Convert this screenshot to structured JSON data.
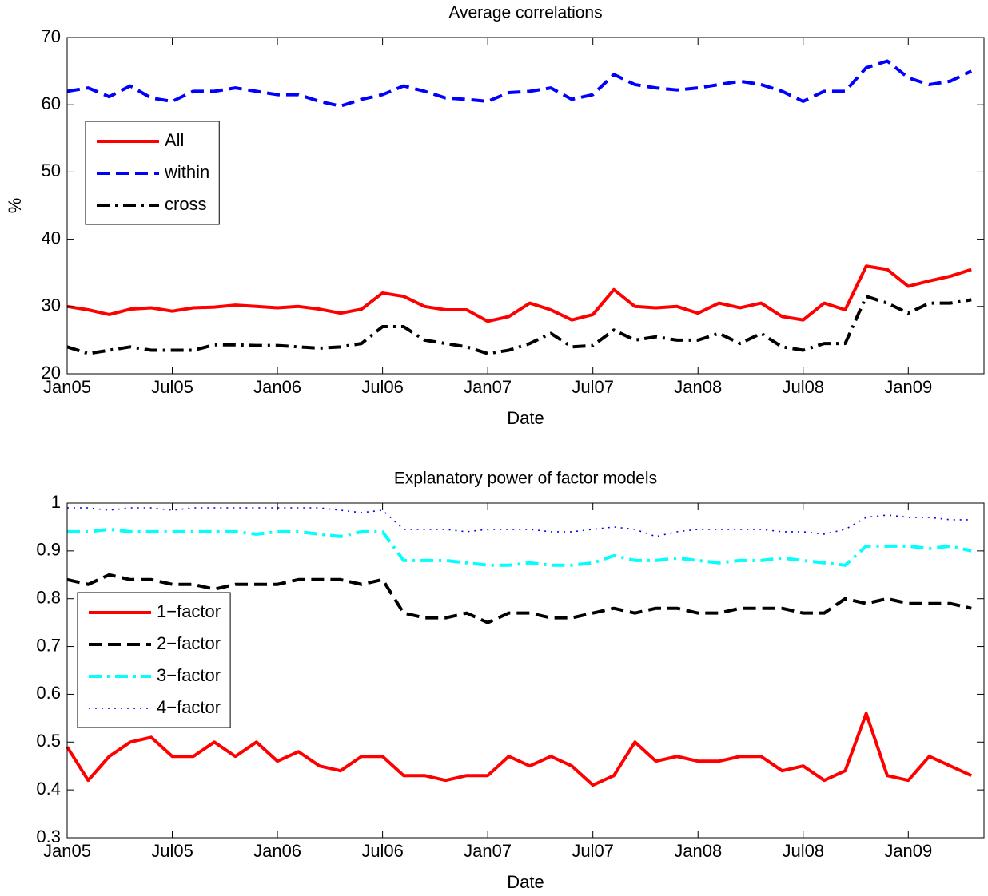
{
  "chart_data": [
    {
      "type": "line",
      "title": "Average correlations",
      "xlabel": "Date",
      "ylabel": "%",
      "x": [
        2005.0,
        2005.1,
        2005.2,
        2005.3,
        2005.4,
        2005.5,
        2005.6,
        2005.7,
        2005.8,
        2005.9,
        2006.0,
        2006.1,
        2006.2,
        2006.3,
        2006.4,
        2006.5,
        2006.6,
        2006.7,
        2006.8,
        2006.9,
        2007.0,
        2007.1,
        2007.2,
        2007.3,
        2007.4,
        2007.5,
        2007.6,
        2007.7,
        2007.8,
        2007.9,
        2008.0,
        2008.1,
        2008.2,
        2008.3,
        2008.4,
        2008.5,
        2008.6,
        2008.7,
        2008.8,
        2008.9,
        2009.0,
        2009.1,
        2009.2,
        2009.3
      ],
      "xlim": [
        2005,
        2009.36
      ],
      "xticks": [
        {
          "value": 2005,
          "label": "Jan05"
        },
        {
          "value": 2005.5,
          "label": "Jul05"
        },
        {
          "value": 2006,
          "label": "Jan06"
        },
        {
          "value": 2006.5,
          "label": "Jul06"
        },
        {
          "value": 2007,
          "label": "Jan07"
        },
        {
          "value": 2007.5,
          "label": "Jul07"
        },
        {
          "value": 2008,
          "label": "Jan08"
        },
        {
          "value": 2008.5,
          "label": "Jul08"
        },
        {
          "value": 2009,
          "label": "Jan09"
        }
      ],
      "ylim": [
        20,
        70
      ],
      "yticks": [
        20,
        30,
        40,
        50,
        60,
        70
      ],
      "legend": "northwest",
      "series": [
        {
          "name": "All",
          "color": "#ff0000",
          "linestyle": "solid",
          "values": [
            30.0,
            29.5,
            28.8,
            29.6,
            29.8,
            29.3,
            29.8,
            29.9,
            30.2,
            30.0,
            29.8,
            30.0,
            29.6,
            29.0,
            29.6,
            32.0,
            31.5,
            30.0,
            29.5,
            29.5,
            27.8,
            28.5,
            30.5,
            29.5,
            28.0,
            28.8,
            32.5,
            30.0,
            29.8,
            30.0,
            29.0,
            30.5,
            29.8,
            30.5,
            28.5,
            28.0,
            30.5,
            29.5,
            36.0,
            35.5,
            33.0,
            33.8,
            34.5,
            35.5
          ]
        },
        {
          "name": "within",
          "color": "#0000ff",
          "linestyle": "dashed",
          "values": [
            62.0,
            62.5,
            61.2,
            62.8,
            61.0,
            60.5,
            62.0,
            62.0,
            62.5,
            62.0,
            61.5,
            61.5,
            60.5,
            59.8,
            60.8,
            61.5,
            62.8,
            62.0,
            61.0,
            60.8,
            60.5,
            61.8,
            62.0,
            62.5,
            60.8,
            61.5,
            64.5,
            63.0,
            62.5,
            62.2,
            62.5,
            63.0,
            63.5,
            63.0,
            62.0,
            60.5,
            62.0,
            62.0,
            65.5,
            66.5,
            64.0,
            63.0,
            63.5,
            65.0
          ]
        },
        {
          "name": "cross",
          "color": "#000000",
          "linestyle": "dashdot",
          "values": [
            24.0,
            23.0,
            23.5,
            24.0,
            23.5,
            23.5,
            23.5,
            24.3,
            24.3,
            24.2,
            24.2,
            24.0,
            23.8,
            24.0,
            24.5,
            27.0,
            27.0,
            25.0,
            24.5,
            24.0,
            23.0,
            23.5,
            24.5,
            26.0,
            24.0,
            24.2,
            26.5,
            25.0,
            25.5,
            25.0,
            25.0,
            26.0,
            24.5,
            26.0,
            24.0,
            23.5,
            24.5,
            24.5,
            31.5,
            30.5,
            29.0,
            30.5,
            30.5,
            31.0
          ]
        }
      ]
    },
    {
      "type": "line",
      "title": "Explanatory power of factor models",
      "xlabel": "Date",
      "x": [
        2005.0,
        2005.1,
        2005.2,
        2005.3,
        2005.4,
        2005.5,
        2005.6,
        2005.7,
        2005.8,
        2005.9,
        2006.0,
        2006.1,
        2006.2,
        2006.3,
        2006.4,
        2006.5,
        2006.6,
        2006.7,
        2006.8,
        2006.9,
        2007.0,
        2007.1,
        2007.2,
        2007.3,
        2007.4,
        2007.5,
        2007.6,
        2007.7,
        2007.8,
        2007.9,
        2008.0,
        2008.1,
        2008.2,
        2008.3,
        2008.4,
        2008.5,
        2008.6,
        2008.7,
        2008.8,
        2008.9,
        2009.0,
        2009.1,
        2009.2,
        2009.3
      ],
      "xlim": [
        2005,
        2009.36
      ],
      "xticks": [
        {
          "value": 2005,
          "label": "Jan05"
        },
        {
          "value": 2005.5,
          "label": "Jul05"
        },
        {
          "value": 2006,
          "label": "Jan06"
        },
        {
          "value": 2006.5,
          "label": "Jul06"
        },
        {
          "value": 2007,
          "label": "Jan07"
        },
        {
          "value": 2007.5,
          "label": "Jul07"
        },
        {
          "value": 2008,
          "label": "Jan08"
        },
        {
          "value": 2008.5,
          "label": "Jul08"
        },
        {
          "value": 2009,
          "label": "Jan09"
        }
      ],
      "ylim": [
        0.3,
        1
      ],
      "yticks": [
        0.3,
        0.4,
        0.5,
        0.6,
        0.7,
        0.8,
        0.9,
        1
      ],
      "legend": "west",
      "series": [
        {
          "name": "1−factor",
          "color": "#ff0000",
          "linestyle": "solid",
          "values": [
            0.49,
            0.42,
            0.47,
            0.5,
            0.51,
            0.47,
            0.47,
            0.5,
            0.47,
            0.5,
            0.46,
            0.48,
            0.45,
            0.44,
            0.47,
            0.47,
            0.43,
            0.43,
            0.42,
            0.43,
            0.43,
            0.47,
            0.45,
            0.47,
            0.45,
            0.41,
            0.43,
            0.5,
            0.46,
            0.47,
            0.46,
            0.46,
            0.47,
            0.47,
            0.44,
            0.45,
            0.42,
            0.44,
            0.56,
            0.43,
            0.42,
            0.47,
            0.45,
            0.43
          ]
        },
        {
          "name": "2−factor",
          "color": "#000000",
          "linestyle": "dashed",
          "values": [
            0.84,
            0.83,
            0.85,
            0.84,
            0.84,
            0.83,
            0.83,
            0.82,
            0.83,
            0.83,
            0.83,
            0.84,
            0.84,
            0.84,
            0.83,
            0.84,
            0.77,
            0.76,
            0.76,
            0.77,
            0.75,
            0.77,
            0.77,
            0.76,
            0.76,
            0.77,
            0.78,
            0.77,
            0.78,
            0.78,
            0.77,
            0.77,
            0.78,
            0.78,
            0.78,
            0.77,
            0.77,
            0.8,
            0.79,
            0.8,
            0.79,
            0.79,
            0.79,
            0.78
          ]
        },
        {
          "name": "3−factor",
          "color": "#00ffff",
          "linestyle": "dashdot",
          "values": [
            0.94,
            0.94,
            0.945,
            0.94,
            0.94,
            0.94,
            0.94,
            0.94,
            0.94,
            0.935,
            0.94,
            0.94,
            0.935,
            0.93,
            0.94,
            0.94,
            0.88,
            0.88,
            0.88,
            0.875,
            0.87,
            0.87,
            0.875,
            0.87,
            0.87,
            0.875,
            0.89,
            0.88,
            0.88,
            0.885,
            0.88,
            0.875,
            0.88,
            0.88,
            0.885,
            0.88,
            0.875,
            0.87,
            0.91,
            0.91,
            0.91,
            0.905,
            0.91,
            0.9
          ]
        },
        {
          "name": "4−factor",
          "color": "#0000ff",
          "linestyle": "dotted",
          "values": [
            0.99,
            0.99,
            0.985,
            0.99,
            0.99,
            0.985,
            0.99,
            0.99,
            0.99,
            0.99,
            0.99,
            0.99,
            0.99,
            0.985,
            0.98,
            0.985,
            0.945,
            0.945,
            0.945,
            0.94,
            0.945,
            0.945,
            0.945,
            0.94,
            0.94,
            0.945,
            0.95,
            0.945,
            0.93,
            0.94,
            0.945,
            0.945,
            0.945,
            0.945,
            0.94,
            0.94,
            0.935,
            0.945,
            0.97,
            0.975,
            0.97,
            0.97,
            0.965,
            0.965
          ]
        }
      ]
    }
  ]
}
